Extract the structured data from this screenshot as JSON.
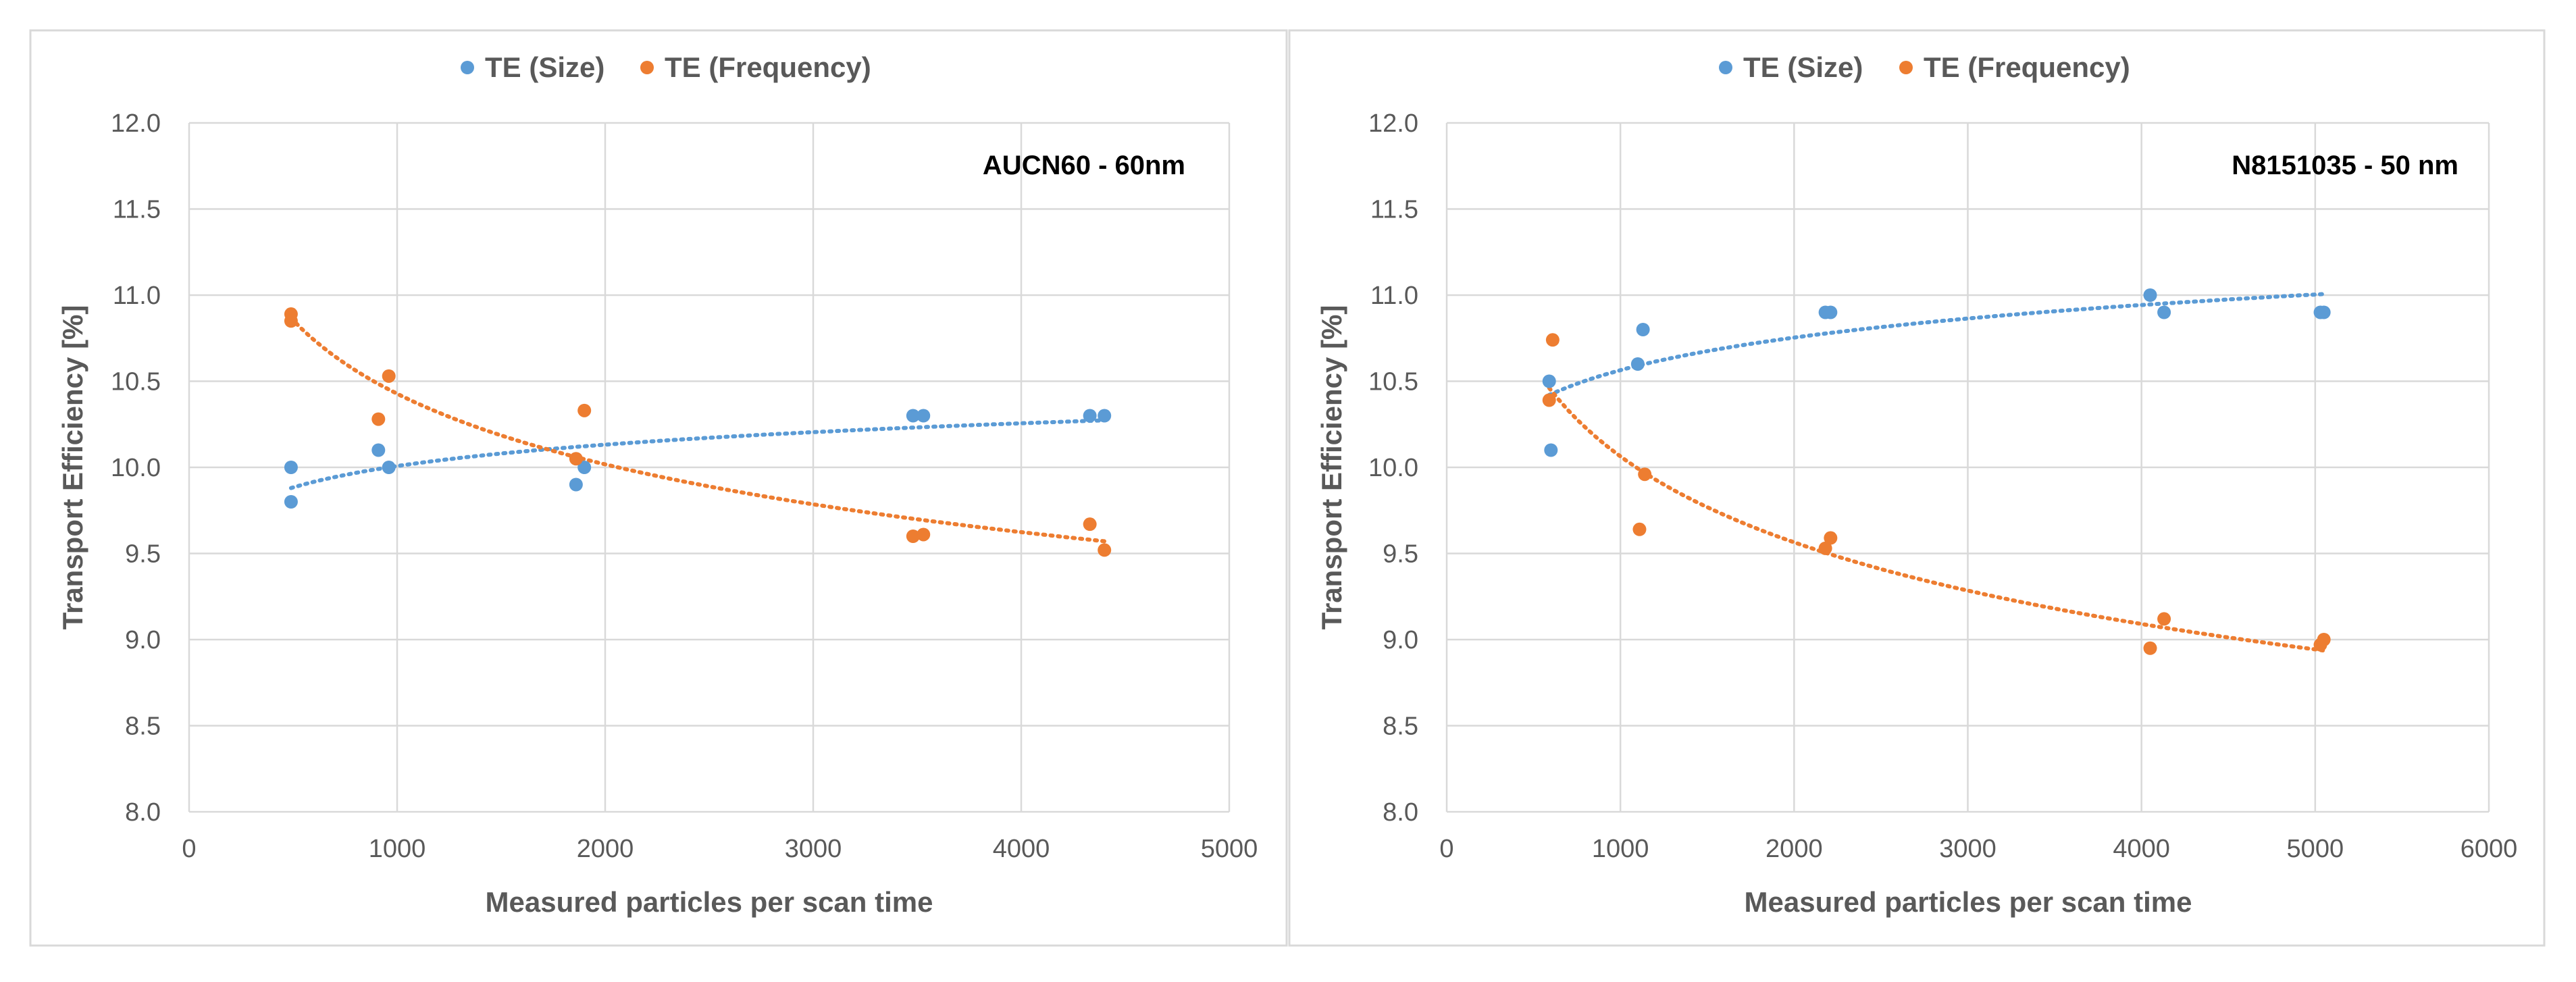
{
  "colors": {
    "size": "#5b9bd5",
    "frequency": "#ed7d31",
    "grid": "#d9d9d9",
    "text": "#595959"
  },
  "chart_data": [
    {
      "type": "scatter",
      "annotation": "AUCN60 - 60nm",
      "xlabel": "Measured particles per scan time",
      "ylabel": "Transport Efficiency [%]",
      "xlim": [
        0,
        5000
      ],
      "ylim": [
        8.0,
        12.0
      ],
      "xticks": [
        "0",
        "1000",
        "2000",
        "3000",
        "4000",
        "5000"
      ],
      "yticks": [
        "8.0",
        "8.5",
        "9.0",
        "9.5",
        "10.0",
        "10.5",
        "11.0",
        "11.5",
        "12.0"
      ],
      "grid": true,
      "legend_position": "top-center",
      "series": [
        {
          "name": "TE (Size)",
          "color": "#5b9bd5",
          "trendline": "logarithmic",
          "points": [
            [
              490,
              10.0
            ],
            [
              490,
              9.8
            ],
            [
              910,
              10.1
            ],
            [
              960,
              10.0
            ],
            [
              1860,
              9.9
            ],
            [
              1900,
              10.0
            ],
            [
              3480,
              10.3
            ],
            [
              3530,
              10.3
            ],
            [
              4330,
              10.3
            ],
            [
              4400,
              10.3
            ]
          ]
        },
        {
          "name": "TE (Frequency)",
          "color": "#ed7d31",
          "trendline": "power",
          "points": [
            [
              490,
              10.89
            ],
            [
              490,
              10.85
            ],
            [
              910,
              10.28
            ],
            [
              960,
              10.53
            ],
            [
              1860,
              10.05
            ],
            [
              1900,
              10.33
            ],
            [
              3480,
              9.6
            ],
            [
              3530,
              9.61
            ],
            [
              4330,
              9.67
            ],
            [
              4400,
              9.52
            ]
          ]
        }
      ]
    },
    {
      "type": "scatter",
      "annotation": "N8151035 - 50 nm",
      "xlabel": "Measured particles per scan time",
      "ylabel": "Transport Efficiency [%]",
      "xlim": [
        0,
        6000
      ],
      "ylim": [
        8.0,
        12.0
      ],
      "xticks": [
        "0",
        "1000",
        "2000",
        "3000",
        "4000",
        "5000",
        "6000"
      ],
      "yticks": [
        "8.0",
        "8.5",
        "9.0",
        "9.5",
        "10.0",
        "10.5",
        "11.0",
        "11.5",
        "12.0"
      ],
      "grid": true,
      "legend_position": "top-center",
      "series": [
        {
          "name": "TE (Size)",
          "color": "#5b9bd5",
          "trendline": "logarithmic",
          "points": [
            [
              590,
              10.5
            ],
            [
              600,
              10.1
            ],
            [
              1100,
              10.6
            ],
            [
              1130,
              10.8
            ],
            [
              2180,
              10.9
            ],
            [
              2210,
              10.9
            ],
            [
              4050,
              11.0
            ],
            [
              4130,
              10.9
            ],
            [
              5030,
              10.9
            ],
            [
              5050,
              10.9
            ]
          ]
        },
        {
          "name": "TE (Frequency)",
          "color": "#ed7d31",
          "trendline": "power",
          "points": [
            [
              590,
              10.39
            ],
            [
              610,
              10.74
            ],
            [
              1110,
              9.64
            ],
            [
              1140,
              9.96
            ],
            [
              2180,
              9.53
            ],
            [
              2210,
              9.59
            ],
            [
              4050,
              8.95
            ],
            [
              4130,
              9.12
            ],
            [
              5030,
              8.97
            ],
            [
              5050,
              9.0
            ]
          ]
        }
      ]
    }
  ]
}
